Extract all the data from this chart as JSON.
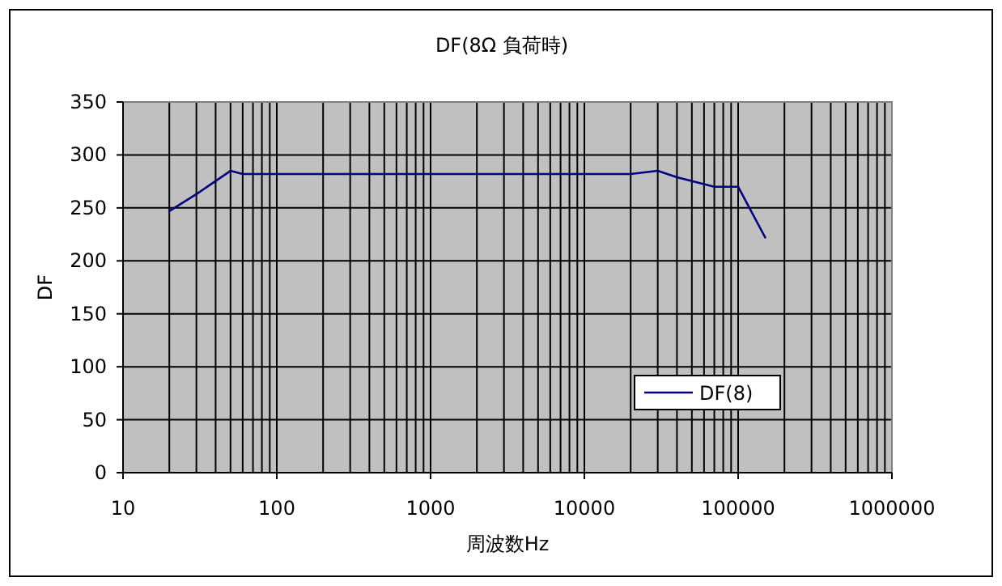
{
  "chart_data": {
    "type": "line",
    "title": "DF(8Ω 負荷時)",
    "xlabel": "周波数Hz",
    "ylabel": "DF",
    "x": [
      20,
      30,
      50,
      60,
      20000,
      30000,
      40000,
      70000,
      100000,
      150000
    ],
    "series": [
      {
        "name": "DF(8)",
        "color": "#000080",
        "values": [
          247,
          263,
          285,
          282,
          282,
          285,
          279,
          270,
          270,
          222
        ]
      }
    ],
    "log": "x",
    "xlim": [
      10,
      1000000
    ],
    "xticks": [
      10,
      100,
      1000,
      10000,
      100000,
      1000000
    ],
    "ylim": [
      0,
      350
    ],
    "yticks": [
      0,
      50,
      100,
      150,
      200,
      250,
      300,
      350
    ],
    "grid": true,
    "legend": "bottom right",
    "marker": "none",
    "line_style": "solid"
  }
}
